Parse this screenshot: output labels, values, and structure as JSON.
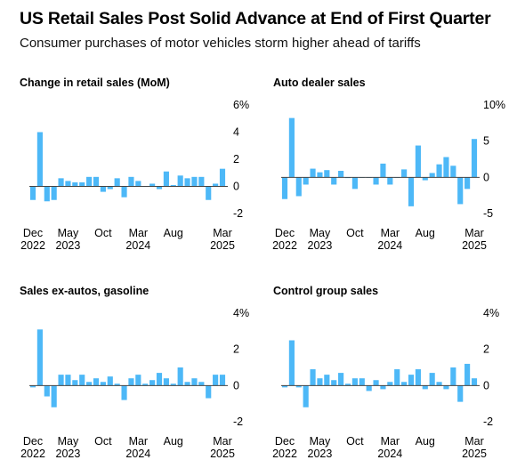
{
  "header": {
    "title": "US Retail Sales Post Solid Advance at End of First Quarter",
    "subtitle": "Consumer purchases of motor vehicles storm higher ahead of tariffs"
  },
  "colors": {
    "bar": "#4db8f7",
    "baseline": "#444444"
  },
  "chart_data": [
    {
      "type": "bar",
      "title": "Change in retail sales (MoM)",
      "x_ticks": [
        {
          "line1": "Dec",
          "line2": "2022",
          "index": 0
        },
        {
          "line1": "May",
          "line2": "2023",
          "index": 5
        },
        {
          "line1": "Oct",
          "line2": "",
          "index": 10
        },
        {
          "line1": "Mar",
          "line2": "2024",
          "index": 15
        },
        {
          "line1": "Aug",
          "line2": "",
          "index": 20
        },
        {
          "line1": "Mar",
          "line2": "2025",
          "index": 27
        }
      ],
      "y_ticks": [
        "6%",
        "4",
        "2",
        "0",
        "-2"
      ],
      "ylim": [
        -2,
        6
      ],
      "values": [
        -1.0,
        4.0,
        -1.1,
        -1.0,
        0.6,
        0.4,
        0.3,
        0.3,
        0.7,
        0.7,
        -0.4,
        -0.2,
        0.6,
        -0.8,
        0.7,
        0.4,
        0.0,
        0.2,
        -0.2,
        1.1,
        0.1,
        0.8,
        0.6,
        0.7,
        0.7,
        -1.0,
        0.2,
        1.3
      ]
    },
    {
      "type": "bar",
      "title": "Auto dealer sales",
      "x_ticks": [
        {
          "line1": "Dec",
          "line2": "2022",
          "index": 0
        },
        {
          "line1": "May",
          "line2": "2023",
          "index": 5
        },
        {
          "line1": "Oct",
          "line2": "",
          "index": 10
        },
        {
          "line1": "Mar",
          "line2": "2024",
          "index": 15
        },
        {
          "line1": "Aug",
          "line2": "",
          "index": 20
        },
        {
          "line1": "Mar",
          "line2": "2025",
          "index": 27
        }
      ],
      "y_ticks": [
        "10%",
        "5",
        "0",
        "-5"
      ],
      "ylim": [
        -5,
        10
      ],
      "values": [
        -3.0,
        8.2,
        -2.6,
        -1.0,
        1.2,
        0.7,
        1.0,
        -1.0,
        0.9,
        -0.1,
        -1.6,
        0.0,
        0.0,
        -1.0,
        1.9,
        -1.0,
        0.0,
        1.1,
        -4.0,
        4.4,
        -0.4,
        0.6,
        1.8,
        2.8,
        1.6,
        -3.7,
        -1.6,
        5.3
      ]
    },
    {
      "type": "bar",
      "title": "Sales ex-autos, gasoline",
      "x_ticks": [
        {
          "line1": "Dec",
          "line2": "2022",
          "index": 0
        },
        {
          "line1": "May",
          "line2": "2023",
          "index": 5
        },
        {
          "line1": "Oct",
          "line2": "",
          "index": 10
        },
        {
          "line1": "Mar",
          "line2": "2024",
          "index": 15
        },
        {
          "line1": "Aug",
          "line2": "",
          "index": 20
        },
        {
          "line1": "Mar",
          "line2": "2025",
          "index": 27
        }
      ],
      "y_ticks": [
        "4%",
        "2",
        "0",
        "-2"
      ],
      "ylim": [
        -2,
        4
      ],
      "values": [
        -0.1,
        3.1,
        -0.6,
        -1.2,
        0.6,
        0.6,
        0.3,
        0.6,
        0.2,
        0.4,
        0.2,
        0.5,
        0.1,
        -0.8,
        0.4,
        0.6,
        0.1,
        0.3,
        0.7,
        0.4,
        0.1,
        1.0,
        0.2,
        0.4,
        0.2,
        -0.7,
        0.6,
        0.6
      ]
    },
    {
      "type": "bar",
      "title": "Control group sales",
      "x_ticks": [
        {
          "line1": "Dec",
          "line2": "2022",
          "index": 0
        },
        {
          "line1": "May",
          "line2": "2023",
          "index": 5
        },
        {
          "line1": "Oct",
          "line2": "",
          "index": 10
        },
        {
          "line1": "Mar",
          "line2": "2024",
          "index": 15
        },
        {
          "line1": "Aug",
          "line2": "",
          "index": 20
        },
        {
          "line1": "Mar",
          "line2": "2025",
          "index": 27
        }
      ],
      "y_ticks": [
        "4%",
        "2",
        "0",
        "-2"
      ],
      "ylim": [
        -2,
        4
      ],
      "values": [
        -0.1,
        2.5,
        -0.1,
        -1.2,
        0.9,
        0.4,
        0.6,
        0.3,
        0.7,
        0.1,
        0.4,
        0.4,
        -0.3,
        0.3,
        -0.2,
        0.2,
        0.9,
        0.2,
        0.6,
        0.9,
        -0.2,
        0.7,
        0.2,
        -0.2,
        1.0,
        -0.9,
        1.2,
        0.4
      ]
    }
  ]
}
